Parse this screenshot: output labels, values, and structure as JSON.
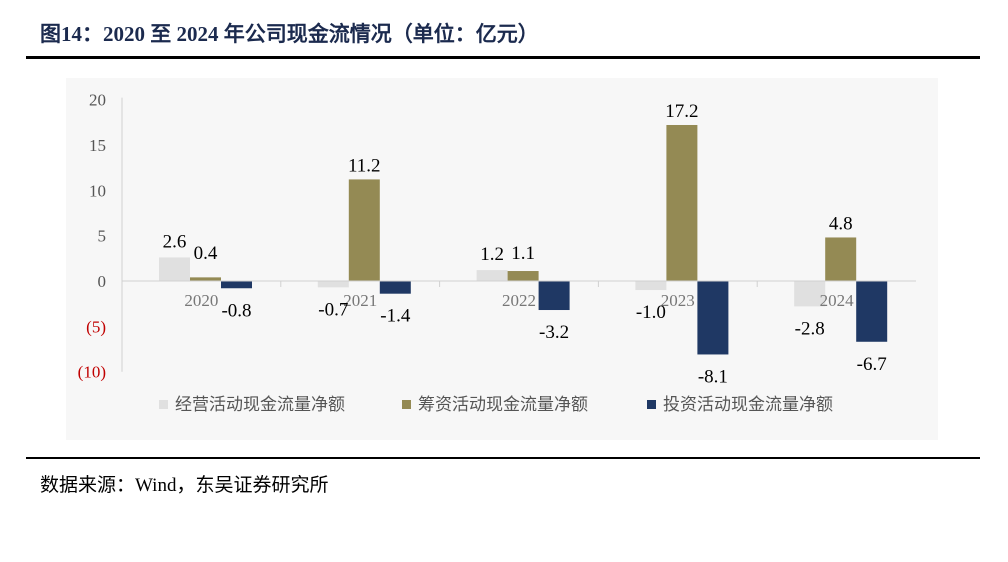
{
  "title": "图14：2020 至 2024 年公司现金流情况（单位：亿元）",
  "source": "数据来源：Wind，东吴证券研究所",
  "chart_data": {
    "type": "bar",
    "title": "",
    "xlabel": "",
    "ylabel": "",
    "categories": [
      "2020",
      "2021",
      "2022",
      "2023",
      "2024"
    ],
    "series": [
      {
        "name": "经营活动现金流量净额",
        "color": "#e0e0e0",
        "values": [
          2.6,
          -0.7,
          1.2,
          -1.0,
          -2.8
        ],
        "labels": [
          "2.6",
          "-0.7",
          "1.2",
          "-1.0",
          "-2.8"
        ]
      },
      {
        "name": "筹资活动现金流量净额",
        "color": "#948a54",
        "values": [
          0.4,
          11.2,
          1.1,
          17.2,
          4.8
        ],
        "labels": [
          "0.4",
          "11.2",
          "1.1",
          "17.2",
          "4.8"
        ]
      },
      {
        "name": "投资活动现金流量净额",
        "color": "#1f3864",
        "values": [
          -0.8,
          -1.4,
          -3.2,
          -8.1,
          -6.7
        ],
        "labels": [
          "-0.8",
          "-1.4",
          "-3.2",
          "-8.1",
          "-6.7"
        ]
      }
    ],
    "ylim": [
      -10,
      20
    ],
    "yticks": [
      20,
      15,
      10,
      5,
      0,
      -5,
      -10
    ],
    "ytick_labels": [
      "20",
      "15",
      "10",
      "5",
      "0",
      "(5)",
      "(10)"
    ],
    "negative_tick_color": "#c00000",
    "grid": false,
    "legend": "bottom"
  }
}
